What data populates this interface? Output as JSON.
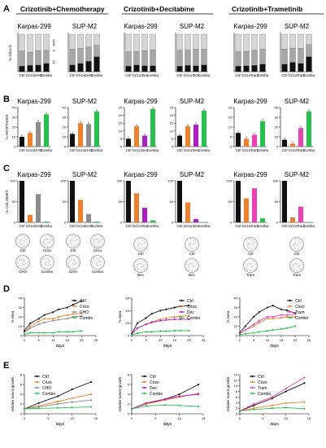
{
  "figure": {
    "panel_letters": [
      "A",
      "B",
      "C",
      "D",
      "E"
    ],
    "headers": [
      "Crizotinib+Chemotherapy",
      "Crizotinib+Decitabine",
      "Crizotinib+Trametinib"
    ],
    "cell_lines": [
      "Karpas-299",
      "SUP-M2"
    ]
  },
  "colors": {
    "ctrl": "#111111",
    "crizo": "#f07f2a",
    "cho": "#8c8c8c",
    "dec": "#b21bc8",
    "tram": "#ef3fb6",
    "combo": "#22c44a"
  },
  "chart_data": [
    {
      "type": "bar",
      "panel": "A",
      "title": "Karpas-299",
      "stacked": true,
      "ylabel": "% CELLS",
      "categories": [
        "Ctrl",
        "Crizo",
        "CHO",
        "Combo"
      ],
      "ylim": [
        0,
        100
      ],
      "series": [
        {
          "name": "G1",
          "values": [
            15,
            17,
            18,
            22
          ]
        },
        {
          "name": "S",
          "values": [
            40,
            35,
            38,
            35
          ]
        },
        {
          "name": "G2/M",
          "values": [
            45,
            48,
            44,
            43
          ]
        }
      ],
      "side_labels": [
        "G2/M",
        "S",
        "G1"
      ]
    },
    {
      "type": "bar",
      "panel": "A",
      "title": "SUP-M2",
      "stacked": true,
      "categories": [
        "Ctrl",
        "Crizo",
        "CHO",
        "Combo"
      ],
      "ylim": [
        0,
        100
      ],
      "series": [
        {
          "name": "G1",
          "values": [
            18,
            22,
            28,
            40
          ]
        },
        {
          "name": "S",
          "values": [
            42,
            40,
            38,
            30
          ]
        },
        {
          "name": "G2/M",
          "values": [
            40,
            38,
            34,
            30
          ]
        }
      ]
    },
    {
      "type": "bar",
      "panel": "A",
      "title": "Karpas-299",
      "stacked": true,
      "categories": [
        "Ctrl",
        "Crizo",
        "Dec",
        "Combo"
      ],
      "ylim": [
        0,
        100
      ],
      "series": [
        {
          "name": "G1",
          "values": [
            15,
            18,
            16,
            16
          ]
        },
        {
          "name": "S",
          "values": [
            38,
            36,
            40,
            42
          ]
        },
        {
          "name": "G2/M",
          "values": [
            47,
            46,
            44,
            42
          ]
        }
      ]
    },
    {
      "type": "bar",
      "panel": "A",
      "title": "SUP-M2",
      "stacked": true,
      "categories": [
        "Ctrl",
        "Crizo",
        "Dec",
        "Combo"
      ],
      "ylim": [
        0,
        100
      ],
      "series": [
        {
          "name": "G1",
          "values": [
            15,
            17,
            16,
            18
          ]
        },
        {
          "name": "S",
          "values": [
            42,
            40,
            44,
            42
          ]
        },
        {
          "name": "G2/M",
          "values": [
            43,
            43,
            40,
            40
          ]
        }
      ]
    },
    {
      "type": "bar",
      "panel": "A",
      "title": "Karpas-299",
      "stacked": true,
      "categories": [
        "Ctrl",
        "Crizo",
        "Tram",
        "Combo"
      ],
      "ylim": [
        0,
        100
      ],
      "series": [
        {
          "name": "G1",
          "values": [
            15,
            16,
            17,
            20
          ]
        },
        {
          "name": "S",
          "values": [
            38,
            38,
            40,
            40
          ]
        },
        {
          "name": "G2/M",
          "values": [
            47,
            46,
            43,
            40
          ]
        }
      ]
    },
    {
      "type": "bar",
      "panel": "A",
      "title": "SUP-M2",
      "stacked": true,
      "categories": [
        "Ctrl",
        "Crizo",
        "Tram",
        "Combo"
      ],
      "ylim": [
        0,
        100
      ],
      "series": [
        {
          "name": "G1",
          "values": [
            20,
            25,
            22,
            40
          ]
        },
        {
          "name": "S",
          "values": [
            40,
            38,
            40,
            32
          ]
        },
        {
          "name": "G2/M",
          "values": [
            40,
            37,
            38,
            28
          ]
        }
      ]
    },
    {
      "type": "bar",
      "panel": "B",
      "title": "Karpas-299",
      "ylabel": "% APOPTOSIS",
      "categories": [
        "Ctrl",
        "Crizo",
        "CHO",
        "Combo"
      ],
      "values": [
        10,
        14,
        25,
        33
      ],
      "ylim": [
        0,
        40
      ],
      "ticks": [
        0,
        10,
        20,
        30,
        40
      ]
    },
    {
      "type": "bar",
      "panel": "B",
      "title": "SUP-M2",
      "categories": [
        "Ctrl",
        "Crizo",
        "CHO",
        "Combo"
      ],
      "values": [
        13,
        24,
        23,
        36
      ],
      "ylim": [
        0,
        40
      ],
      "ticks": [
        0,
        10,
        20,
        30,
        40
      ]
    },
    {
      "type": "bar",
      "panel": "B",
      "title": "Karpas-299",
      "categories": [
        "Ctrl",
        "Crizo",
        "Dec",
        "Combo"
      ],
      "values": [
        5,
        13,
        7,
        24
      ],
      "ylim": [
        0,
        25
      ],
      "ticks": [
        0,
        5,
        10,
        15,
        20,
        25
      ]
    },
    {
      "type": "bar",
      "panel": "B",
      "title": "SUP-M2",
      "categories": [
        "Ctrl",
        "Crizo",
        "Dec",
        "Combo"
      ],
      "values": [
        7,
        13,
        14,
        23
      ],
      "ylim": [
        0,
        25
      ],
      "ticks": [
        0,
        5,
        10,
        15,
        20,
        25
      ]
    },
    {
      "type": "bar",
      "panel": "B",
      "title": "Karpas-299",
      "categories": [
        "Ctrl",
        "Crizo",
        "Tram",
        "Combo"
      ],
      "values": [
        7,
        4,
        6,
        13
      ],
      "ylim": [
        0,
        20
      ],
      "ticks": [
        0,
        5,
        10,
        15,
        20
      ]
    },
    {
      "type": "bar",
      "panel": "B",
      "title": "SUP-M2",
      "categories": [
        "Ctrl",
        "Crizo",
        "Tram",
        "Combo"
      ],
      "values": [
        7,
        3,
        19,
        36
      ],
      "ylim": [
        0,
        40
      ],
      "ticks": [
        0,
        10,
        20,
        30,
        40
      ]
    },
    {
      "type": "bar",
      "panel": "C",
      "title": "Karpas-299",
      "ylabel": "% COLONIES",
      "categories": [
        "Ctrl",
        "Crizo",
        "CHO",
        "Combo"
      ],
      "values": [
        100,
        18,
        68,
        2
      ],
      "ylim": [
        0,
        100
      ],
      "ticks": [
        0,
        50,
        100
      ]
    },
    {
      "type": "bar",
      "panel": "C",
      "title": "SUP-M2",
      "categories": [
        "Ctrl",
        "Crizo",
        "CHO",
        "Combo"
      ],
      "values": [
        100,
        54,
        20,
        2
      ],
      "ylim": [
        0,
        100
      ],
      "ticks": [
        0,
        50,
        100
      ]
    },
    {
      "type": "bar",
      "panel": "C",
      "title": "Karpas-299",
      "categories": [
        "Ctrl",
        "Crizo",
        "Dec",
        "Combo"
      ],
      "values": [
        100,
        70,
        35,
        5
      ],
      "ylim": [
        0,
        100
      ],
      "ticks": [
        0,
        50,
        100
      ]
    },
    {
      "type": "bar",
      "panel": "C",
      "title": "SUP-M2",
      "categories": [
        "Ctrl",
        "Crizo",
        "Dec",
        "Combo"
      ],
      "values": [
        100,
        48,
        8,
        1
      ],
      "ylim": [
        0,
        100
      ],
      "ticks": [
        0,
        50,
        100
      ]
    },
    {
      "type": "bar",
      "panel": "C",
      "title": "Karpas-299",
      "categories": [
        "Ctrl",
        "Crizo",
        "Tram",
        "Combo"
      ],
      "values": [
        100,
        58,
        82,
        10
      ],
      "ylim": [
        0,
        100
      ],
      "ticks": [
        0,
        50,
        100
      ]
    },
    {
      "type": "bar",
      "panel": "C",
      "title": "SUP-M2",
      "categories": [
        "Ctrl",
        "Crizo",
        "Tram",
        "Combo"
      ],
      "values": [
        100,
        12,
        38,
        1
      ],
      "ylim": [
        0,
        100
      ],
      "ticks": [
        0,
        50,
        100
      ]
    },
    {
      "type": "line",
      "panel": "D",
      "ylabel": "% Area",
      "xlabel": "days",
      "x": [
        0,
        2,
        5,
        7,
        10,
        12,
        15,
        17,
        20
      ],
      "xlim": [
        0,
        25
      ],
      "xticks": [
        0,
        5,
        10,
        15,
        20,
        25
      ],
      "ylim": [
        0,
        40
      ],
      "yticks": [
        0,
        10,
        20,
        30,
        40
      ],
      "series": [
        {
          "name": "Ctrl",
          "values": [
            5,
            13,
            18,
            22,
            25,
            28,
            30,
            33,
            37
          ]
        },
        {
          "name": "Crizo",
          "values": [
            3,
            10,
            15,
            18,
            18,
            20,
            22,
            23,
            24
          ]
        },
        {
          "name": "CHO",
          "values": [
            3,
            8,
            12,
            14,
            16,
            17,
            18,
            20,
            21
          ]
        },
        {
          "name": "Combo",
          "values": [
            1,
            3,
            3,
            3,
            3,
            4,
            4,
            4,
            5
          ]
        }
      ]
    },
    {
      "type": "line",
      "panel": "D",
      "ylabel": "% Area",
      "xlabel": "days",
      "x": [
        0,
        2,
        5,
        7,
        10,
        12,
        15,
        17,
        20
      ],
      "xlim": [
        0,
        25
      ],
      "xticks": [
        0,
        5,
        10,
        15,
        20,
        25
      ],
      "ylim": [
        0,
        60
      ],
      "yticks": [
        0,
        20,
        40,
        60
      ],
      "series": [
        {
          "name": "Ctrl",
          "values": [
            3,
            20,
            28,
            35,
            40,
            42,
            45,
            47,
            48
          ]
        },
        {
          "name": "Crizo",
          "values": [
            2,
            12,
            18,
            22,
            26,
            28,
            30,
            31,
            32
          ]
        },
        {
          "name": "Dec",
          "values": [
            2,
            12,
            18,
            21,
            24,
            25,
            26,
            26,
            26
          ]
        },
        {
          "name": "Combo",
          "values": [
            1,
            4,
            6,
            6,
            7,
            7,
            8,
            8,
            8
          ]
        }
      ]
    },
    {
      "type": "line",
      "panel": "D",
      "ylabel": "% Area",
      "xlabel": "days",
      "x": [
        0,
        2,
        5,
        7,
        10,
        12,
        15,
        17,
        20
      ],
      "xlim": [
        0,
        25
      ],
      "xticks": [
        0,
        5,
        10,
        15,
        20,
        25
      ],
      "ylim": [
        0,
        40
      ],
      "yticks": [
        0,
        10,
        20,
        30,
        40
      ],
      "series": [
        {
          "name": "Ctrl",
          "values": [
            3,
            10,
            20,
            25,
            30,
            32,
            28,
            27,
            24
          ]
        },
        {
          "name": "Crizo",
          "values": [
            2,
            6,
            10,
            14,
            18,
            18,
            19,
            20,
            20
          ]
        },
        {
          "name": "Tram",
          "values": [
            2,
            6,
            12,
            16,
            20,
            20,
            22,
            22,
            23
          ]
        },
        {
          "name": "Combo",
          "values": [
            1,
            2,
            3,
            4,
            5,
            6,
            7,
            8,
            10
          ]
        }
      ]
    },
    {
      "type": "line",
      "panel": "E",
      "ylabel": "relative tumor growth",
      "xlabel": "days",
      "x": [
        0,
        3,
        7,
        10,
        14
      ],
      "xlim": [
        0,
        15
      ],
      "xticks": [
        0,
        5,
        10,
        15
      ],
      "ylim": [
        0,
        8
      ],
      "yticks": [
        0,
        2,
        4,
        6,
        8
      ],
      "series": [
        {
          "name": "Ctrl",
          "values": [
            1,
            2.2,
            3.6,
            5,
            6.5
          ]
        },
        {
          "name": "Crizo",
          "values": [
            1,
            1.6,
            2.5,
            3.2,
            4
          ]
        },
        {
          "name": "CHO",
          "values": [
            1,
            1.4,
            2,
            2.4,
            2.8
          ]
        },
        {
          "name": "Combo",
          "values": [
            1,
            1.1,
            1.2,
            1.3,
            1.4
          ]
        }
      ]
    },
    {
      "type": "line",
      "panel": "E",
      "ylabel": "relative tumor growth",
      "xlabel": "days",
      "x": [
        0,
        3,
        7,
        10,
        14
      ],
      "xlim": [
        0,
        15
      ],
      "xticks": [
        0,
        5,
        10,
        15
      ],
      "ylim": [
        0,
        8
      ],
      "yticks": [
        0,
        2,
        4,
        6,
        8
      ],
      "series": [
        {
          "name": "Ctrl",
          "values": [
            1,
            2,
            3,
            4,
            6
          ]
        },
        {
          "name": "Crizo",
          "values": [
            1,
            2,
            2.8,
            3.4,
            4.2
          ]
        },
        {
          "name": "Dec",
          "values": [
            1,
            2.2,
            3,
            3.6,
            4
          ]
        },
        {
          "name": "Combo",
          "values": [
            1,
            1.6,
            1.8,
            1.7,
            1.5
          ]
        }
      ]
    },
    {
      "type": "line",
      "panel": "E",
      "ylabel": "relative tumor growth",
      "xlabel": "days",
      "x": [
        0,
        3,
        7,
        10,
        14
      ],
      "xlim": [
        0,
        15
      ],
      "xticks": [
        0,
        5,
        10,
        15
      ],
      "ylim": [
        0,
        14
      ],
      "yticks": [
        0,
        2,
        4,
        6,
        8,
        10,
        12,
        14
      ],
      "series": [
        {
          "name": "Ctrl",
          "values": [
            1,
            3,
            5.5,
            8,
            11
          ]
        },
        {
          "name": "Crizo",
          "values": [
            1,
            2,
            3,
            3.8,
            4.2
          ]
        },
        {
          "name": "Tram",
          "values": [
            1,
            3.5,
            6,
            9,
            13
          ]
        },
        {
          "name": "Combo",
          "values": [
            1,
            1.5,
            2,
            2.2,
            1.8
          ]
        }
      ]
    }
  ],
  "colony_rows": [
    {
      "labels": [
        "Ctrl",
        "Crizo",
        "CHO",
        "Combo"
      ]
    },
    {
      "labels": [
        "Ctrl",
        "Crizo",
        "CHO",
        "Combo"
      ]
    },
    {
      "labels": [
        "Ctrl",
        "Dec"
      ]
    },
    {
      "labels": [
        "Ctrl",
        "Dec"
      ]
    },
    {
      "labels": [
        "Ctrl",
        "Tram"
      ]
    },
    {
      "labels": [
        "Ctrl",
        "Tram"
      ]
    }
  ]
}
